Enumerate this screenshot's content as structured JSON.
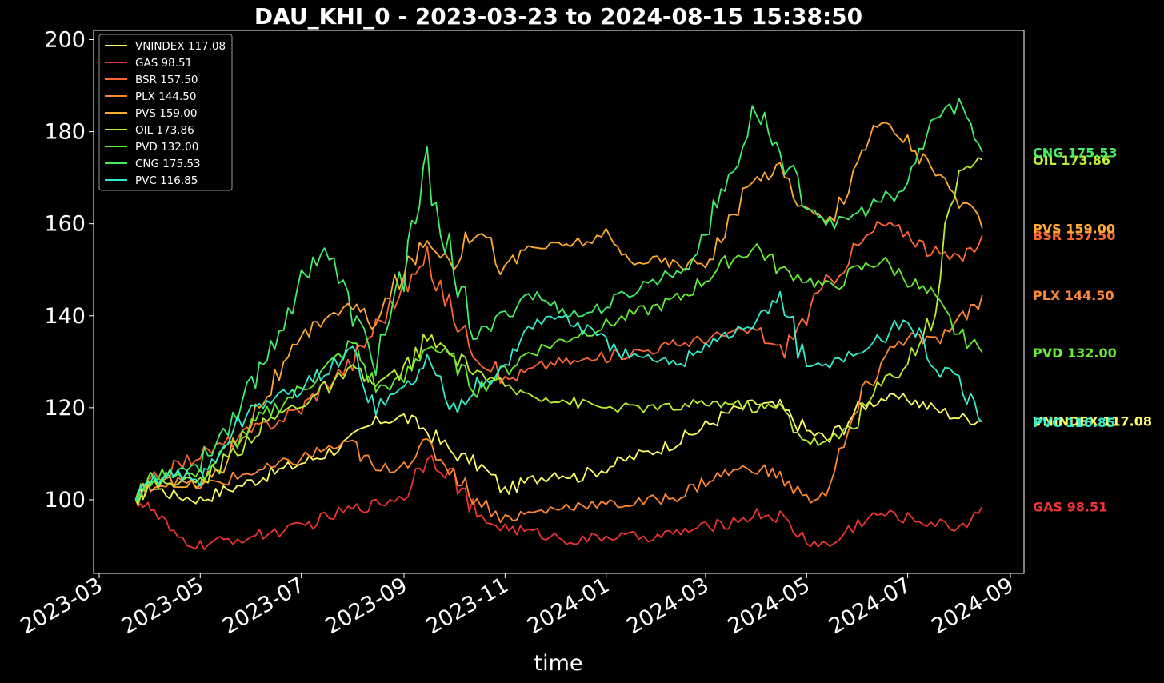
{
  "chart_data": {
    "type": "line",
    "title": "DAU_KHI_0 - 2023-03-23 to 2024-08-15 15:38:50",
    "xlabel": "time",
    "ylabel": "",
    "x_range": [
      "2023-03-01",
      "2024-09-01"
    ],
    "ylim": [
      84,
      202
    ],
    "x_ticks": [
      "2023-03",
      "2023-05",
      "2023-07",
      "2023-09",
      "2023-11",
      "2024-01",
      "2024-03",
      "2024-05",
      "2024-07",
      "2024-09"
    ],
    "y_ticks": [
      100,
      120,
      140,
      160,
      180,
      200
    ],
    "grid": false,
    "legend_position": "upper-left",
    "x": [
      "2023-03-23",
      "2023-04-01",
      "2023-04-15",
      "2023-05-01",
      "2023-05-15",
      "2023-06-01",
      "2023-06-15",
      "2023-07-01",
      "2023-07-15",
      "2023-08-01",
      "2023-08-15",
      "2023-09-01",
      "2023-09-15",
      "2023-10-01",
      "2023-10-15",
      "2023-11-01",
      "2023-11-15",
      "2023-12-01",
      "2023-12-15",
      "2024-01-01",
      "2024-01-15",
      "2024-02-01",
      "2024-02-15",
      "2024-03-01",
      "2024-03-15",
      "2024-04-01",
      "2024-04-15",
      "2024-05-01",
      "2024-05-15",
      "2024-06-01",
      "2024-06-15",
      "2024-07-01",
      "2024-07-15",
      "2024-08-01",
      "2024-08-15"
    ],
    "series": [
      {
        "name": "VNINDEX 117.08",
        "label": "VNINDEX 117.08",
        "color": "#ffff66",
        "values": [
          100,
          103,
          101,
          100,
          102,
          104,
          106,
          108,
          110,
          113,
          117,
          118,
          115,
          110,
          108,
          102,
          104,
          106,
          105,
          107,
          109,
          111,
          113,
          116,
          119,
          121,
          120,
          115,
          113,
          120,
          122,
          122,
          120,
          118,
          117.08
        ]
      },
      {
        "name": "GAS 98.51",
        "label": "GAS 98.51",
        "color": "#ee3333",
        "values": [
          100,
          98,
          92,
          90,
          91,
          92,
          93,
          94,
          96,
          98,
          99,
          101,
          110,
          105,
          96,
          94,
          93,
          92,
          91,
          92,
          92,
          92,
          93,
          94,
          95,
          97,
          96,
          91,
          90,
          95,
          97,
          96,
          95,
          94,
          98.51
        ]
      },
      {
        "name": "BSR 157.50",
        "label": "BSR 157.50",
        "color": "#ff6633",
        "values": [
          100,
          104,
          107,
          110,
          112,
          115,
          117,
          120,
          125,
          130,
          138,
          146,
          152,
          140,
          132,
          126,
          128,
          130,
          130,
          131,
          132,
          133,
          134,
          135,
          136,
          137,
          132,
          140,
          148,
          155,
          160,
          158,
          154,
          152,
          157.5
        ]
      },
      {
        "name": "PLX 144.50",
        "label": "PLX 144.50",
        "color": "#ff8833",
        "values": [
          100,
          103,
          104,
          103,
          104,
          106,
          107,
          109,
          111,
          112,
          106,
          108,
          112,
          106,
          100,
          96,
          97,
          98,
          99,
          99,
          99,
          100,
          101,
          104,
          106,
          107,
          105,
          100,
          102,
          120,
          130,
          136,
          134,
          138,
          144.5
        ]
      },
      {
        "name": "PVS 159.00",
        "label": "PVS 159.00",
        "color": "#ffaa33",
        "values": [
          100,
          104,
          104,
          103,
          108,
          118,
          126,
          134,
          140,
          142,
          138,
          150,
          156,
          152,
          160,
          150,
          155,
          155,
          156,
          157,
          152,
          152,
          151,
          152,
          160,
          170,
          172,
          163,
          160,
          175,
          182,
          178,
          172,
          165,
          159.0
        ]
      },
      {
        "name": "OIL 173.86",
        "label": "OIL 173.86",
        "color": "#bbee33",
        "values": [
          100,
          103,
          104,
          104,
          108,
          114,
          118,
          121,
          124,
          128,
          125,
          128,
          135,
          131,
          128,
          124,
          123,
          122,
          121,
          120,
          120,
          120,
          120,
          121,
          121,
          120,
          120,
          113,
          112,
          118,
          125,
          130,
          140,
          172,
          173.86
        ]
      },
      {
        "name": "PVD 132.00",
        "label": "PVD 132.00",
        "color": "#66ee33",
        "values": [
          100,
          105,
          106,
          105,
          110,
          116,
          120,
          124,
          128,
          134,
          124,
          126,
          134,
          130,
          124,
          128,
          132,
          134,
          136,
          138,
          140,
          142,
          144,
          148,
          152,
          155,
          150,
          148,
          146,
          150,
          152,
          148,
          144,
          136,
          132.0
        ]
      },
      {
        "name": "CNG 175.53",
        "label": "CNG 175.53",
        "color": "#44ee66",
        "values": [
          100,
          104,
          106,
          108,
          115,
          125,
          135,
          148,
          155,
          140,
          130,
          150,
          172,
          150,
          135,
          140,
          145,
          142,
          140,
          142,
          145,
          148,
          150,
          158,
          170,
          185,
          175,
          165,
          160,
          162,
          165,
          168,
          182,
          186,
          175.53
        ]
      },
      {
        "name": "PVC 116.85",
        "label": "PVC 116.85",
        "color": "#33eecc",
        "values": [
          100,
          104,
          106,
          104,
          112,
          120,
          122,
          124,
          128,
          132,
          120,
          124,
          130,
          120,
          125,
          128,
          138,
          140,
          138,
          134,
          131,
          130,
          130,
          134,
          136,
          138,
          145,
          128,
          130,
          132,
          135,
          140,
          130,
          125,
          116.85
        ]
      }
    ]
  }
}
